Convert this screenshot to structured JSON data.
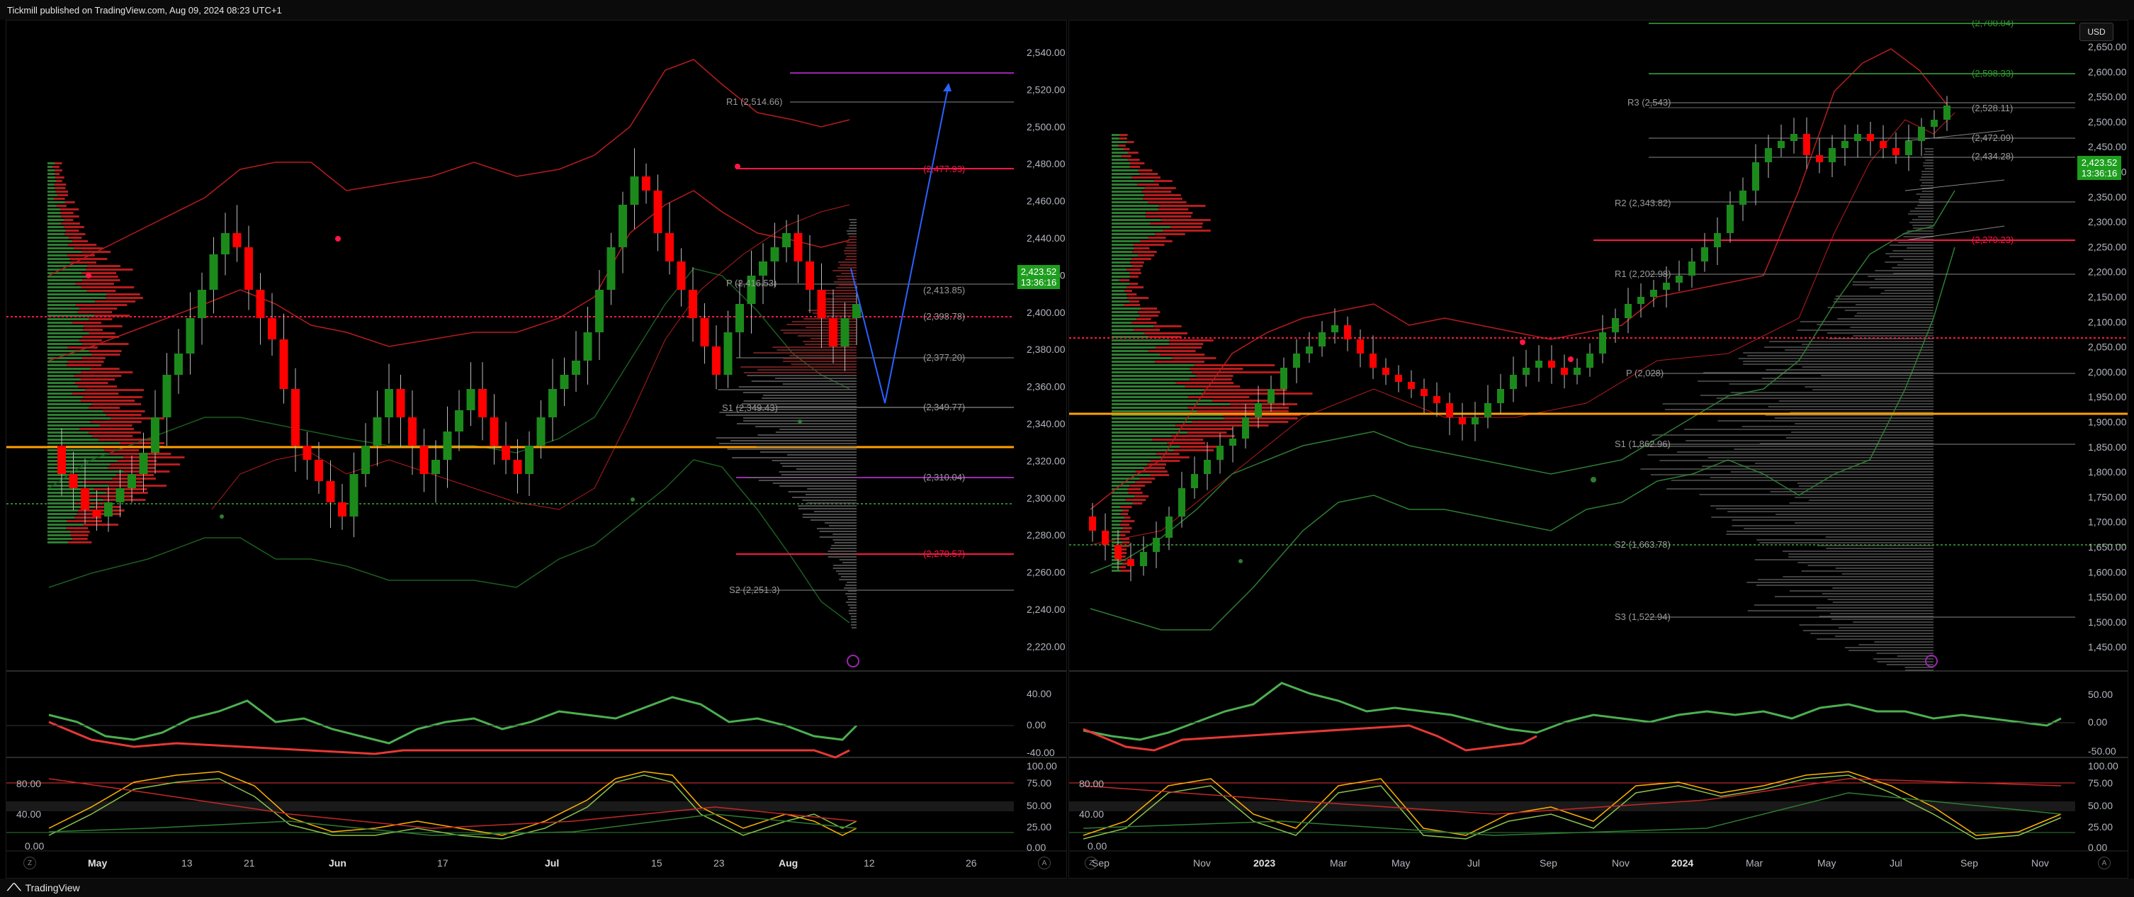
{
  "header": {
    "title": "Tickmill published on TradingView.com, Aug 09, 2024 08:23 UTC+1"
  },
  "footer": {
    "brand": "TradingView"
  },
  "currency_button": "USD",
  "left_chart": {
    "price_axis": [
      "2,540.00",
      "2,520.00",
      "2,500.00",
      "2,480.00",
      "2,460.00",
      "2,440.00",
      "2,420.00",
      "2,400.00",
      "2,380.00",
      "2,360.00",
      "2,340.00",
      "2,320.00",
      "2,300.00",
      "2,280.00",
      "2,260.00",
      "2,240.00",
      "2,220.00"
    ],
    "current_price": "2,423.52",
    "countdown": "13:36:16",
    "pivots": {
      "r1": "R1 (2,514.66)",
      "p": "P (2,416.53)",
      "s1": "S1 (2,349.43)",
      "s2": "S2 (2,251.3)",
      "l1": "(2,477.93)",
      "l2": "(2,413.85)",
      "l3": "(2,398.78)",
      "l4": "(2,377.20)",
      "l5": "(2,349.77)",
      "l6": "(2,310.04)",
      "l7": "(2,270.57)"
    },
    "osc_axis": [
      "40.00",
      "0.00",
      "-40.00"
    ],
    "stoch_axis_left": [
      "80.00",
      "40.00",
      "0.00"
    ],
    "stoch_axis_right": [
      "100.00",
      "75.00",
      "50.00",
      "25.00",
      "0.00"
    ],
    "time_axis": [
      "May",
      "13",
      "21",
      "Jun",
      "17",
      "Jul",
      "15",
      "23",
      "Aug",
      "12",
      "26"
    ]
  },
  "right_chart": {
    "price_axis": [
      "2,650.00",
      "2,600.00",
      "2,550.00",
      "2,500.00",
      "2,450.00",
      "2,400.00",
      "2,350.00",
      "2,300.00",
      "2,250.00",
      "2,200.00",
      "2,150.00",
      "2,100.00",
      "2,050.00",
      "2,000.00",
      "1,950.00",
      "1,900.00",
      "1,850.00",
      "1,800.00",
      "1,750.00",
      "1,700.00",
      "1,650.00",
      "1,600.00",
      "1,550.00",
      "1,500.00",
      "1,450.00"
    ],
    "current_price": "2,423.52",
    "countdown": "13:36:16",
    "pivots": {
      "r3": "R3 (2,543)",
      "r2": "R2 (2,343.82)",
      "r1": "R1 (2,202.98)",
      "p": "P (2,028)",
      "s1": "S1 (1,862.96)",
      "s2": "S2 (1,663.78)",
      "s3": "S3 (1,522.94)",
      "l1": "(2,700.04)",
      "l2": "(2,598.33)",
      "l3": "(2,528.11)",
      "l4": "(2,472.09)",
      "l5": "(2,434.28)",
      "l6": "(2,270.23)"
    },
    "osc_axis": [
      "50.00",
      "0.00",
      "-50.00"
    ],
    "stoch_axis_left": [
      "80.00",
      "40.00",
      "0.00"
    ],
    "stoch_axis_right": [
      "100.00",
      "75.00",
      "50.00",
      "25.00",
      "0.00"
    ],
    "time_axis": [
      "Sep",
      "Nov",
      "2023",
      "Mar",
      "May",
      "Jul",
      "Sep",
      "Nov",
      "2024",
      "Mar",
      "May",
      "Jul",
      "Sep",
      "Nov"
    ]
  },
  "colors": {
    "up": "#1b8a1b",
    "down": "#ff0000",
    "bg": "#000000",
    "accent_green": "#1e9e1e"
  }
}
